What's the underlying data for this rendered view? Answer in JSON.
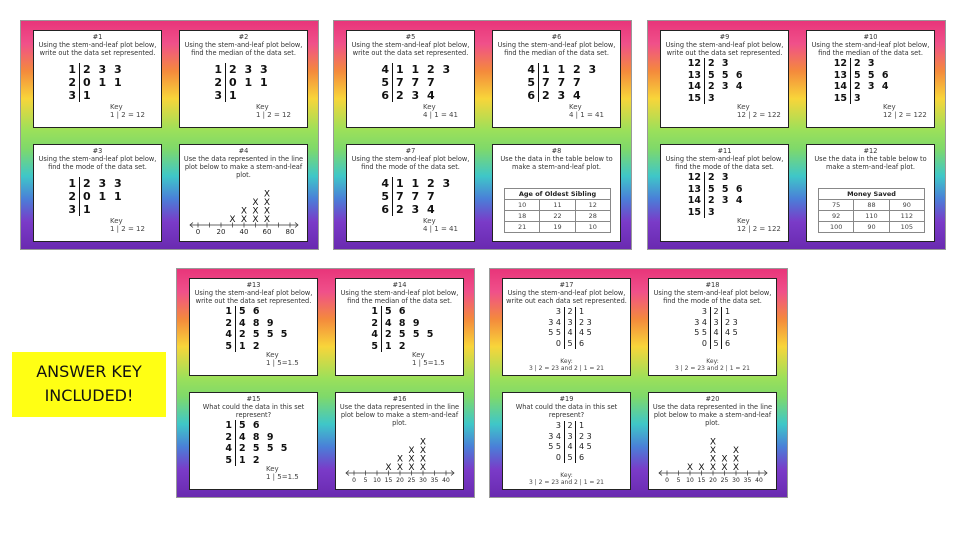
{
  "answer_key": [
    "ANSWER KEY",
    "INCLUDED!"
  ],
  "cards": [
    {
      "panels": [
        {
          "num": "#1",
          "title": "Using the stem-and-leaf plot below, write out the data set represented.",
          "type": "stem",
          "rows": [
            [
              "1",
              "2 3 3"
            ],
            [
              "2",
              "0 1 1"
            ],
            [
              "3",
              "1"
            ]
          ],
          "key": [
            "Key",
            "1 | 2 = 12"
          ]
        },
        {
          "num": "#2",
          "title": "Using the stem-and-leaf plot below, find the median of the data set.",
          "type": "stem",
          "rows": [
            [
              "1",
              "2 3 3"
            ],
            [
              "2",
              "0 1 1"
            ],
            [
              "3",
              "1"
            ]
          ],
          "key": [
            "Key",
            "1 | 2 = 12"
          ]
        },
        {
          "num": "#3",
          "title": "Using the stem-and-leaf plot below, find the mode of the data set.",
          "type": "stem",
          "rows": [
            [
              "1",
              "2 3 3"
            ],
            [
              "2",
              "0 1 1"
            ],
            [
              "3",
              "1"
            ]
          ],
          "key": [
            "Key",
            "1 | 2 = 12"
          ]
        },
        {
          "num": "#4",
          "title": "Use the data represented in the line plot below to make a stem-and-leaf plot.",
          "type": "lineplot",
          "min": 0,
          "max": 80,
          "step": 10,
          "labels": [
            "0",
            "20",
            "40",
            "60",
            "80"
          ],
          "label_values": [
            0,
            20,
            40,
            60,
            80
          ],
          "counts": {
            "30": 1,
            "40": 2,
            "50": 3,
            "60": 4
          }
        }
      ]
    },
    {
      "panels": [
        {
          "num": "#5",
          "title": "Using the stem-and-leaf plot below, write out the data set represented.",
          "type": "stem",
          "rows": [
            [
              "4",
              "1 1 2 3"
            ],
            [
              "5",
              "7 7 7"
            ],
            [
              "6",
              "2 3 4"
            ]
          ],
          "key": [
            "Key",
            "4 | 1 = 41"
          ]
        },
        {
          "num": "#6",
          "title": "Using the stem-and-leaf plot below, find the median of the data set.",
          "type": "stem",
          "rows": [
            [
              "4",
              "1 1 2 3"
            ],
            [
              "5",
              "7 7 7"
            ],
            [
              "6",
              "2 3 4"
            ]
          ],
          "key": [
            "Key",
            "4 | 1 = 41"
          ]
        },
        {
          "num": "#7",
          "title": "Using the stem-and-leaf plot below, find the mode of the data set.",
          "type": "stem",
          "rows": [
            [
              "4",
              "1 1 2 3"
            ],
            [
              "5",
              "7 7 7"
            ],
            [
              "6",
              "2 3 4"
            ]
          ],
          "key": [
            "Key",
            "4 | 1 = 41"
          ]
        },
        {
          "num": "#8",
          "title": "Use the data in the table below to make a stem-and-leaf plot.",
          "type": "table",
          "header": "Age of Oldest Sibling",
          "cells": [
            [
              "10",
              "11",
              "12"
            ],
            [
              "18",
              "22",
              "28"
            ],
            [
              "21",
              "19",
              "10"
            ]
          ]
        }
      ]
    },
    {
      "panels": [
        {
          "num": "#9",
          "title": "Using the stem-and-leaf plot below, write out the data set represented.",
          "type": "stem",
          "rows": [
            [
              "12",
              "2 3"
            ],
            [
              "13",
              "5 5 6"
            ],
            [
              "14",
              "2 3 4"
            ],
            [
              "15",
              "3"
            ]
          ],
          "key": [
            "Key",
            "12 | 2 = 122"
          ]
        },
        {
          "num": "#10",
          "title": "Using the stem-and-leaf plot below, find the median of the data set.",
          "type": "stem",
          "rows": [
            [
              "12",
              "2 3"
            ],
            [
              "13",
              "5 5 6"
            ],
            [
              "14",
              "2 3 4"
            ],
            [
              "15",
              "3"
            ]
          ],
          "key": [
            "Key",
            "12 | 2 = 122"
          ]
        },
        {
          "num": "#11",
          "title": "Using the stem-and-leaf plot below, find the mode of the data set.",
          "type": "stem",
          "rows": [
            [
              "12",
              "2 3"
            ],
            [
              "13",
              "5 5 6"
            ],
            [
              "14",
              "2 3 4"
            ],
            [
              "15",
              "3"
            ]
          ],
          "key": [
            "Key",
            "12 | 2 = 122"
          ]
        },
        {
          "num": "#12",
          "title": "Use the data in the table below to make a stem-and-leaf plot.",
          "type": "table",
          "header": "Money Saved",
          "cells": [
            [
              "75",
              "88",
              "90"
            ],
            [
              "92",
              "110",
              "112"
            ],
            [
              "100",
              "90",
              "105"
            ]
          ]
        }
      ]
    },
    {
      "panels": [
        {
          "num": "#13",
          "title": "Using the stem-and-leaf plot below, write out the data set represented.",
          "type": "stem",
          "rows": [
            [
              "1",
              "5 6"
            ],
            [
              "2",
              "4 8 9"
            ],
            [
              "4",
              "2 5 5 5"
            ],
            [
              "5",
              "1 2"
            ]
          ],
          "key": [
            "Key",
            "1 | 5=1.5"
          ]
        },
        {
          "num": "#14",
          "title": "Using the stem-and-leaf plot below, find the median of the data set.",
          "type": "stem",
          "rows": [
            [
              "1",
              "5 6"
            ],
            [
              "2",
              "4 8 9"
            ],
            [
              "4",
              "2 5 5 5"
            ],
            [
              "5",
              "1 2"
            ]
          ],
          "key": [
            "Key",
            "1 | 5=1.5"
          ]
        },
        {
          "num": "#15",
          "title": "What could the data in this set represent?",
          "type": "stem",
          "rows": [
            [
              "1",
              "5 6"
            ],
            [
              "2",
              "4 8 9"
            ],
            [
              "4",
              "2 5 5 5"
            ],
            [
              "5",
              "1 2"
            ]
          ],
          "key": [
            "Key",
            "1 | 5=1.5"
          ]
        },
        {
          "num": "#16",
          "title": "Use the data represented in the line plot below to make a stem-and-leaf plot.",
          "type": "lineplot",
          "min": 0,
          "max": 40,
          "step": 5,
          "labels": [
            "0",
            "5",
            "10",
            "15",
            "20",
            "25",
            "30",
            "35",
            "40"
          ],
          "label_values": [
            0,
            5,
            10,
            15,
            20,
            25,
            30,
            35,
            40
          ],
          "counts": {
            "15": 1,
            "20": 2,
            "25": 3,
            "30": 4
          }
        }
      ]
    },
    {
      "panels": [
        {
          "num": "#17",
          "title": "Using the stem-and-leaf plot below, write out each data set represented.",
          "type": "b2b",
          "rows": [
            [
              "3",
              "2",
              "1"
            ],
            [
              "3 4",
              "3",
              "2 3"
            ],
            [
              "5 5",
              "4",
              "4 5"
            ],
            [
              "0",
              "5",
              "6"
            ]
          ],
          "key": [
            "Key:",
            "3 | 2 = 23  and 2 | 1 = 21"
          ]
        },
        {
          "num": "#18",
          "title": "Using the stem-and-leaf plot below, find the mode of the data set.",
          "type": "b2b",
          "rows": [
            [
              "3",
              "2",
              "1"
            ],
            [
              "3 4",
              "3",
              "2 3"
            ],
            [
              "5 5",
              "4",
              "4 5"
            ],
            [
              "0",
              "5",
              "6"
            ]
          ],
          "key": [
            "Key:",
            "3 | 2 = 23  and 2 | 1 = 21"
          ]
        },
        {
          "num": "#19",
          "title": "What could the data in this set represent?",
          "type": "b2b",
          "rows": [
            [
              "3",
              "2",
              "1"
            ],
            [
              "3 4",
              "3",
              "2 3"
            ],
            [
              "5 5",
              "4",
              "4 5"
            ],
            [
              "0",
              "5",
              "6"
            ]
          ],
          "key": [
            "Key:",
            "3 | 2 = 23  and 2 | 1 = 21"
          ]
        },
        {
          "num": "#20",
          "title": "Use the data represented in the line plot below to make a stem-and-leaf plot.",
          "type": "lineplot",
          "min": 0,
          "max": 40,
          "step": 5,
          "labels": [
            "0",
            "5",
            "10",
            "15",
            "20",
            "25",
            "30",
            "35",
            "40"
          ],
          "label_values": [
            0,
            5,
            10,
            15,
            20,
            25,
            30,
            35,
            40
          ],
          "counts": {
            "10": 1,
            "15": 1,
            "20": 4,
            "25": 2,
            "30": 3
          }
        }
      ]
    }
  ]
}
